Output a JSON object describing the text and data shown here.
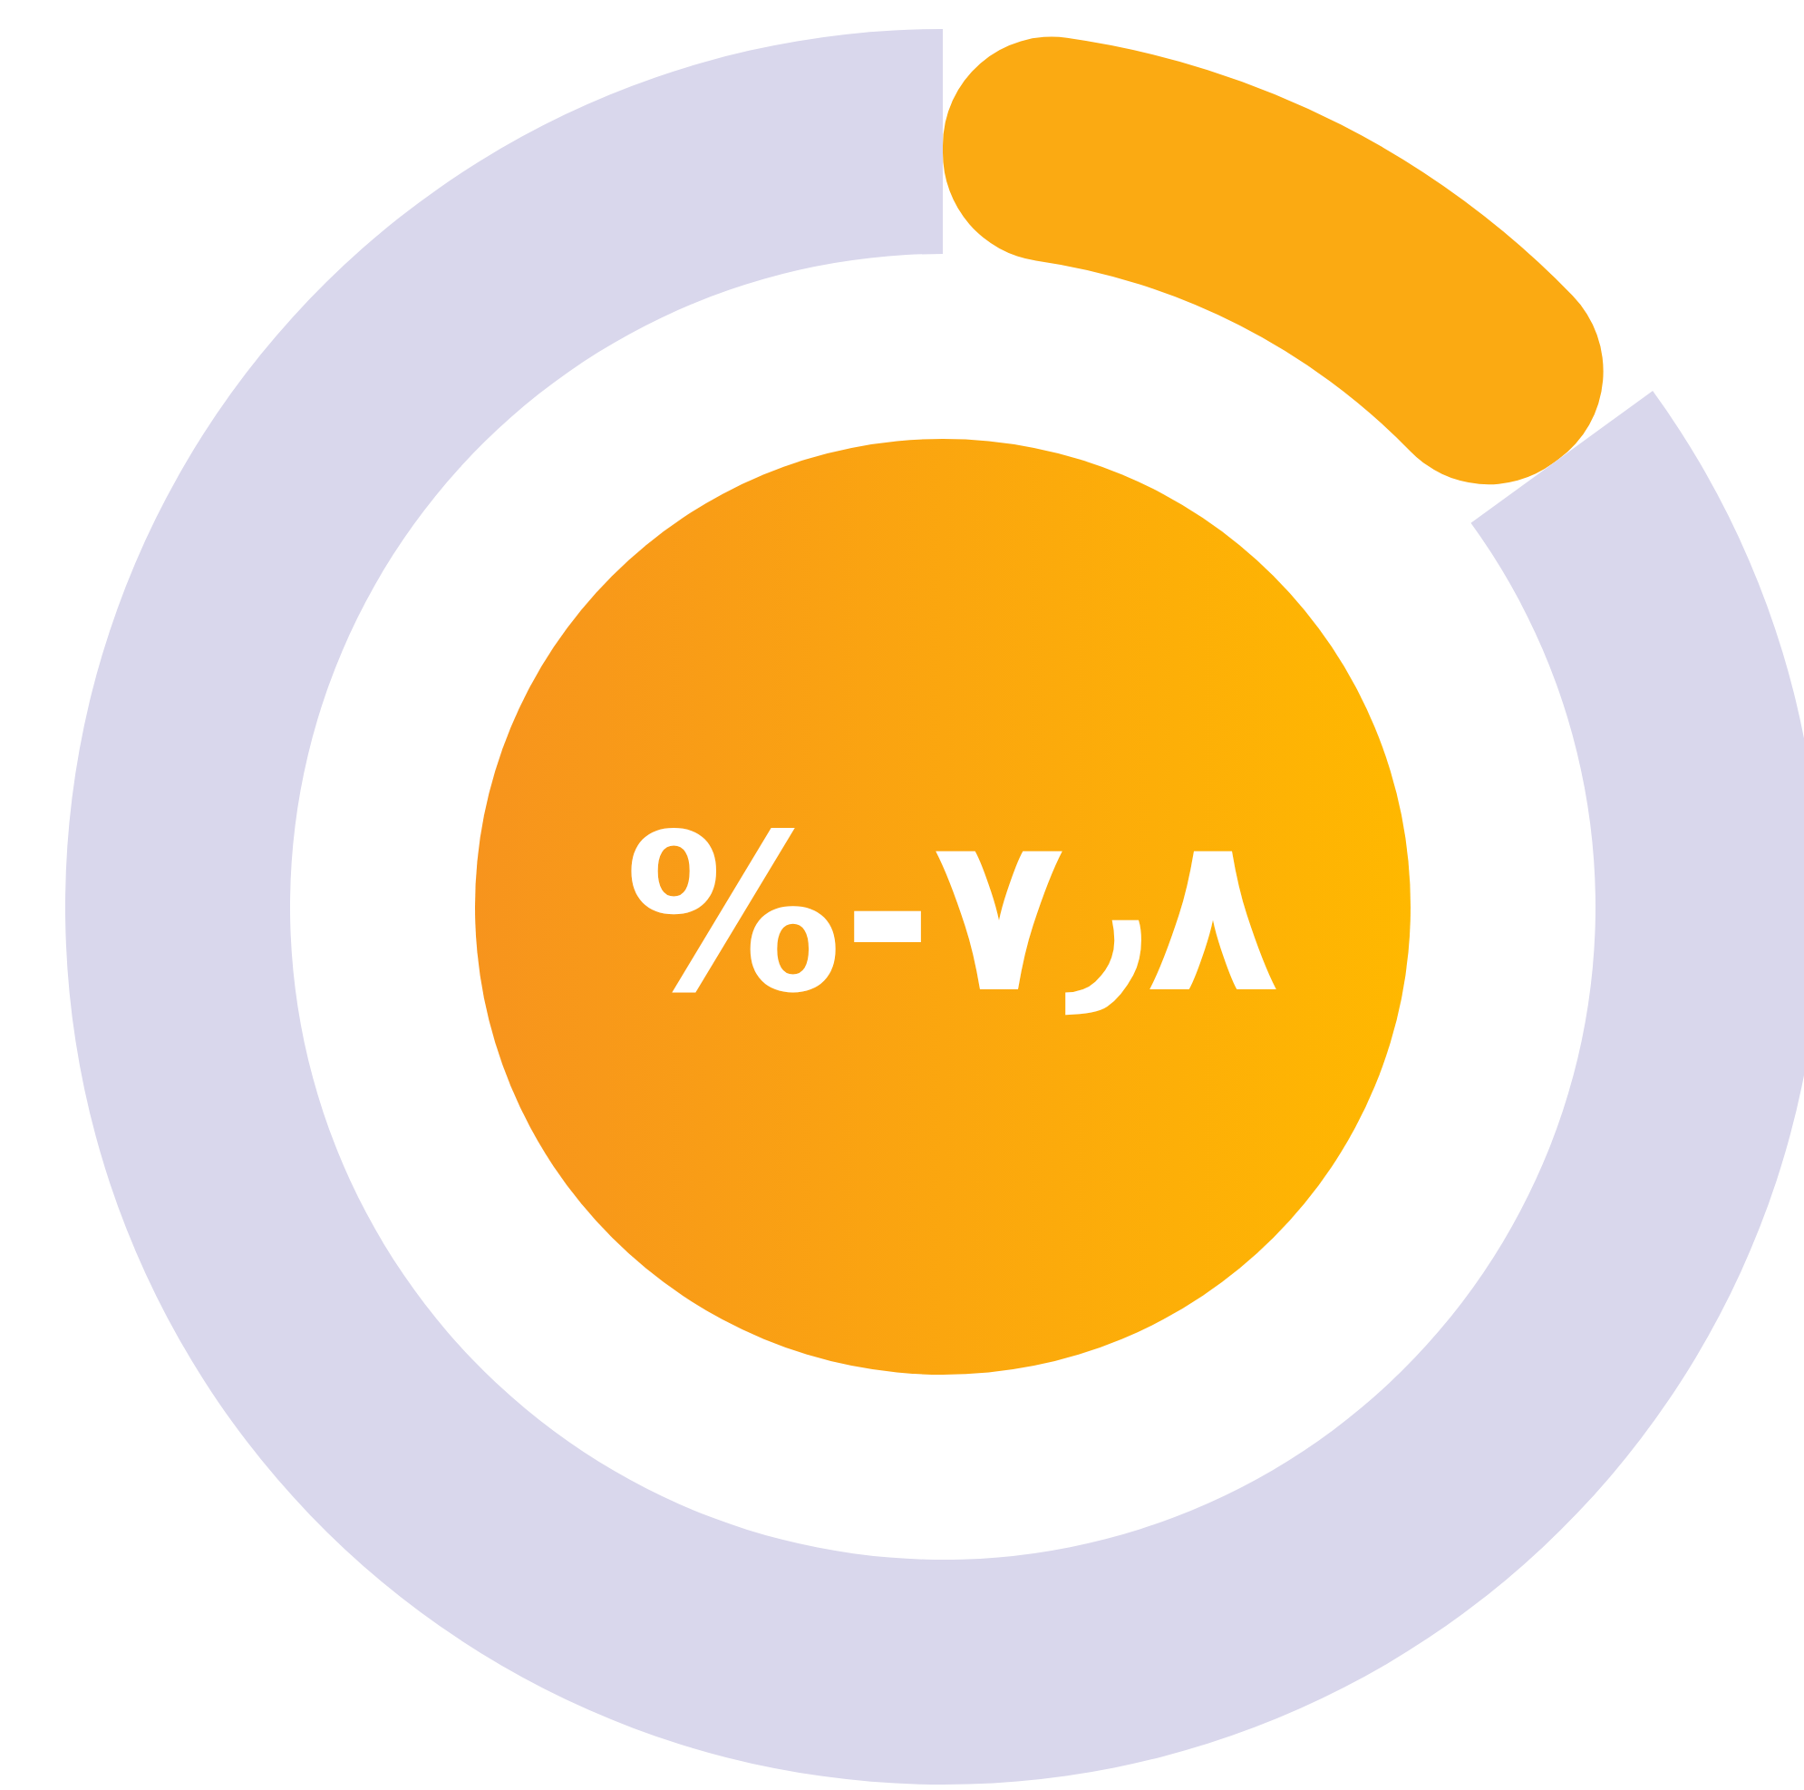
{
  "chart_data": {
    "type": "donut",
    "categories": [
      null,
      null
    ],
    "values": [
      15,
      85
    ],
    "colors": [
      "#fbaa12",
      "#d9d7ec"
    ],
    "annotations": [
      "%-۷٫۸"
    ]
  }
}
